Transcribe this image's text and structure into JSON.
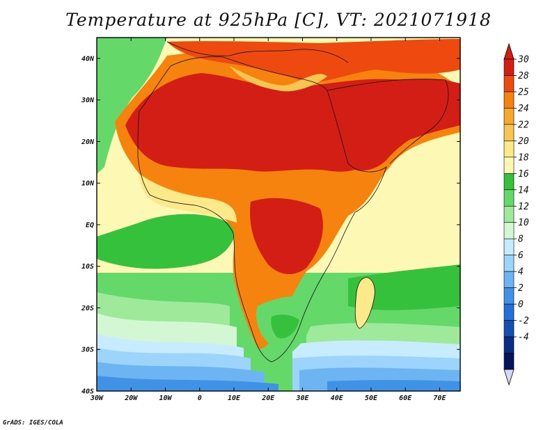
{
  "title": "Temperature at 925hPa [C], VT: 2021071918",
  "credit": "GrADS: IGES/COLA",
  "map": {
    "lon_range": [
      -30,
      76
    ],
    "lat_range": [
      -40,
      45
    ],
    "lat_ticks": [
      {
        "value": 40,
        "label": "40N"
      },
      {
        "value": 30,
        "label": "30N"
      },
      {
        "value": 20,
        "label": "20N"
      },
      {
        "value": 10,
        "label": "10N"
      },
      {
        "value": 0,
        "label": "EQ"
      },
      {
        "value": -10,
        "label": "10S"
      },
      {
        "value": -20,
        "label": "20S"
      },
      {
        "value": -30,
        "label": "30S"
      },
      {
        "value": -40,
        "label": "40S"
      }
    ],
    "lon_ticks": [
      {
        "value": -30,
        "label": "30W"
      },
      {
        "value": -20,
        "label": "20W"
      },
      {
        "value": -10,
        "label": "10W"
      },
      {
        "value": 0,
        "label": "0"
      },
      {
        "value": 10,
        "label": "10E"
      },
      {
        "value": 20,
        "label": "20E"
      },
      {
        "value": 30,
        "label": "30E"
      },
      {
        "value": 40,
        "label": "40E"
      },
      {
        "value": 50,
        "label": "50E"
      },
      {
        "value": 60,
        "label": "60E"
      },
      {
        "value": 70,
        "label": "70E"
      }
    ]
  },
  "colorbar": {
    "labels": [
      "30",
      "28",
      "25",
      "24",
      "22",
      "20",
      "18",
      "16",
      "14",
      "12",
      "10",
      "8",
      "6",
      "4",
      "2",
      "0",
      "-2",
      "-4"
    ],
    "colors": [
      "#d21e14",
      "#ee4a10",
      "#f5830e",
      "#f6a82e",
      "#f7c552",
      "#fbe98a",
      "#fdf8b4",
      "#35c13c",
      "#64d96a",
      "#9fe99b",
      "#d2f7d2",
      "#c8ecff",
      "#9dd4fb",
      "#6cb4f2",
      "#3f92e6",
      "#2270d8",
      "#1450b4",
      "#0a2c84",
      "#06145a"
    ],
    "top_arrow_color": "#d21e14",
    "bottom_arrow_color": "#d8d8f4"
  }
}
